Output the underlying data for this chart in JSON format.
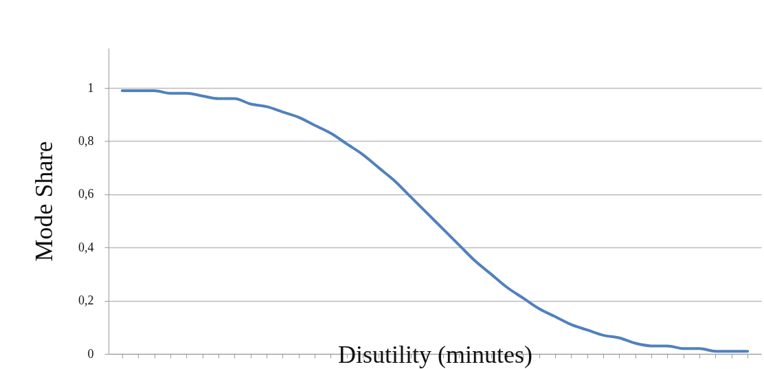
{
  "chart_data": {
    "type": "line",
    "xlabel": "Disutility (minutes)",
    "ylabel": "Mode Share",
    "categories": [
      null,
      null,
      null,
      null,
      null,
      null,
      null,
      null,
      null,
      null,
      null,
      null,
      null,
      null,
      null,
      null,
      null,
      null,
      null,
      null,
      null,
      null,
      null,
      null,
      null,
      null,
      null,
      null,
      null,
      null,
      null,
      null,
      null,
      null,
      null,
      null,
      null,
      null,
      null,
      null
    ],
    "series": [
      {
        "color": "#4f81bd",
        "values": [
          0.99,
          0.99,
          0.99,
          0.98,
          0.98,
          0.97,
          0.96,
          0.96,
          0.94,
          0.93,
          0.91,
          0.89,
          0.86,
          0.83,
          0.79,
          0.75,
          0.7,
          0.65,
          0.59,
          0.53,
          0.47,
          0.41,
          0.35,
          0.3,
          0.25,
          0.21,
          0.17,
          0.14,
          0.11,
          0.09,
          0.07,
          0.06,
          0.04,
          0.03,
          0.03,
          0.02,
          0.02,
          0.01,
          0.01,
          0.01
        ]
      }
    ],
    "ylim": [
      0,
      1.15
    ],
    "yticks": [
      0,
      {
        "value": 0.2,
        "label": "0,2"
      },
      {
        "value": 0.4,
        "label": "0,4"
      },
      {
        "value": 0.6,
        "label": "0,6"
      },
      {
        "value": 0.8,
        "label": "0,8"
      },
      1
    ],
    "grid": "y",
    "tick_labels": "y",
    "marker": "none",
    "line_style": "solid"
  }
}
